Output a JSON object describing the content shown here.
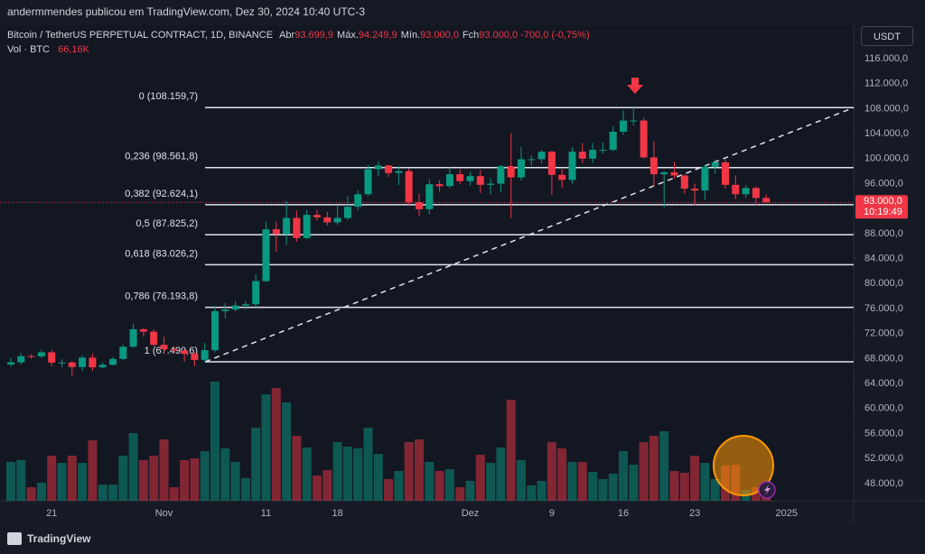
{
  "chart_data": {
    "type": "candlestick",
    "publisher": "andermmendes publicou em TradingView.com, Dez 30, 2024 10:40 UTC-3",
    "currency_button": "USDT",
    "brand": "TradingView",
    "categories": [
      null,
      null,
      null,
      null,
      "21",
      null,
      null,
      null,
      null,
      null,
      null,
      null,
      null,
      null,
      null,
      "Nov",
      null,
      null,
      null,
      null,
      null,
      null,
      null,
      null,
      null,
      "11",
      null,
      null,
      null,
      null,
      null,
      null,
      "18",
      null,
      null,
      null,
      null,
      null,
      null,
      null,
      null,
      null,
      null,
      null,
      null,
      "Dez",
      null,
      null,
      null,
      null,
      null,
      null,
      null,
      "9",
      null,
      null,
      null,
      null,
      null,
      null,
      "16",
      null,
      null,
      null,
      null,
      null,
      null,
      "23",
      null,
      null,
      null,
      null,
      null,
      null,
      null,
      null,
      "2025"
    ],
    "legend_items": [
      {
        "label": "Abr",
        "text": "93.699,9"
      },
      {
        "label": "Máx.",
        "text": "94.249,9"
      },
      {
        "label": "Mín.",
        "text": "93.000,0"
      },
      {
        "label": "Fch",
        "text": "93.000,0"
      }
    ],
    "change_text": "-700,0 (-0,75%)",
    "volume_text": "66,16K",
    "up_color": "#089981",
    "down_color": "#f23645",
    "series": [
      {
        "name": "Bitcoin / TetherUS PERPETUAL CONTRACT, 1D, BINANCE",
        "open": [
          67050,
          67400,
          68400,
          68360,
          69000,
          67370,
          67380,
          66650,
          68150,
          66600,
          67000,
          67950,
          69900,
          72700,
          72300,
          70200,
          69500,
          69300,
          68750,
          67800,
          69350,
          75600,
          75850,
          76500,
          76700,
          80400,
          88700,
          87900,
          90500,
          87300,
          91000,
          90600,
          89800,
          90500,
          92300,
          94300,
          98300,
          98900,
          97700,
          98000,
          93000,
          91900,
          95900,
          95600,
          97500,
          96400,
          97200,
          95800,
          96000,
          98800,
          97000,
          99900,
          99900,
          101100,
          97400,
          96600,
          101100,
          100000,
          101400,
          101400,
          104300,
          106100,
          106100,
          100200,
          97500,
          97800,
          97300,
          95200,
          94900,
          98700,
          99400,
          95800,
          94300,
          95300,
          93699.9,
          null,
          null
        ],
        "high": [
          68100,
          68900,
          68700,
          69400,
          69400,
          67900,
          67600,
          68500,
          68800,
          67400,
          68300,
          70200,
          73600,
          72900,
          72700,
          71500,
          69900,
          69500,
          69000,
          70500,
          76400,
          76900,
          77200,
          77200,
          81500,
          89900,
          89900,
          93200,
          91700,
          91800,
          91800,
          91500,
          92600,
          94000,
          94900,
          99000,
          99600,
          99000,
          98800,
          98400,
          94400,
          96700,
          96500,
          98600,
          98300,
          97900,
          98200,
          96900,
          99000,
          104088,
          101900,
          100500,
          101400,
          101300,
          98300,
          101800,
          102500,
          102500,
          102600,
          105200,
          107700,
          108159.7,
          106500,
          102800,
          98000,
          99500,
          97400,
          96000,
          99000,
          99900,
          99900,
          97300,
          95800,
          95600,
          94249.9,
          null,
          null
        ],
        "low": [
          66700,
          67100,
          68000,
          68100,
          66800,
          66600,
          65300,
          66000,
          66000,
          66500,
          66900,
          67700,
          69700,
          71500,
          70000,
          68800,
          68900,
          67500,
          66800,
          67500,
          69000,
          74400,
          75500,
          75800,
          76200,
          80200,
          85100,
          86200,
          86700,
          87100,
          90100,
          89300,
          89400,
          90200,
          91800,
          94000,
          97200,
          97100,
          95800,
          92600,
          90800,
          91100,
          94700,
          95300,
          95900,
          95700,
          94500,
          94300,
          94600,
          90500,
          96500,
          98900,
          99200,
          94200,
          95300,
          96000,
          99300,
          99300,
          100800,
          101200,
          103800,
          105300,
          100000,
          95500,
          92200,
          96800,
          94400,
          92500,
          93400,
          97600,
          95200,
          93500,
          93700,
          92500,
          93000,
          null,
          null
        ],
        "close": [
          67400,
          68400,
          68360,
          69000,
          67370,
          67380,
          66650,
          68150,
          66600,
          67000,
          67950,
          69900,
          72700,
          72300,
          70200,
          69500,
          69300,
          68750,
          67800,
          69350,
          75600,
          75850,
          76500,
          76700,
          80400,
          88700,
          87900,
          90500,
          87300,
          91000,
          90600,
          89800,
          90500,
          92300,
          94300,
          98300,
          98900,
          97700,
          98000,
          93000,
          91900,
          95900,
          95600,
          97500,
          96400,
          97200,
          95800,
          96000,
          98800,
          97000,
          99900,
          99900,
          101100,
          97400,
          96600,
          101100,
          100000,
          101400,
          101400,
          104300,
          106100,
          106100,
          100200,
          97500,
          97800,
          97300,
          95200,
          94900,
          98700,
          99400,
          95800,
          94300,
          95300,
          93700,
          93000,
          null,
          null
        ]
      },
      {
        "name": "Vol · BTC",
        "axis": "y2",
        "values": [
          159100,
          166500,
          55500,
          74000,
          185000,
          155400,
          185000,
          155400,
          247900,
          66600,
          66600,
          185000,
          277500,
          166500,
          185000,
          251600,
          55500,
          166500,
          173900,
          203500,
          488400,
          214600,
          159100,
          92500,
          299700,
          436600,
          462500,
          403300,
          266400,
          218300,
          103600,
          125800,
          240500,
          222000,
          214600,
          299700,
          192400,
          88800,
          122100,
          240500,
          251600,
          159100,
          122100,
          129500,
          55500,
          81400,
          188700,
          155400,
          218300,
          414400,
          166500,
          62900,
          81400,
          240500,
          214600,
          159100,
          159100,
          118400,
          88800,
          111000,
          203500,
          148000,
          240500,
          266400,
          284900,
          122100,
          114700,
          185000,
          155400,
          88800,
          144300,
          148000,
          44400,
          55500,
          66160,
          null,
          null
        ]
      }
    ],
    "ylim": [
      45250,
      121050
    ],
    "yticks": [
      {
        "value": 116000,
        "label": "116.000,0"
      },
      {
        "value": 112000,
        "label": "112.000,0"
      },
      {
        "value": 108000,
        "label": "108.000,0"
      },
      {
        "value": 104000,
        "label": "104.000,0"
      },
      {
        "value": 100000,
        "label": "100.000,0"
      },
      {
        "value": 96000,
        "label": "96.000,0"
      },
      {
        "value": 88000,
        "label": "88.000,0"
      },
      {
        "value": 84000,
        "label": "84.000,0"
      },
      {
        "value": 80000,
        "label": "80.000,0"
      },
      {
        "value": 76000,
        "label": "76.000,0"
      },
      {
        "value": 72000,
        "label": "72.000,0"
      },
      {
        "value": 68000,
        "label": "68.000,0"
      },
      {
        "value": 64000,
        "label": "64.000,0"
      },
      {
        "value": 60000,
        "label": "60.000,0"
      },
      {
        "value": 56000,
        "label": "56.000,0"
      },
      {
        "value": 52000,
        "label": "52.000,0"
      },
      {
        "value": 48000,
        "label": "48.000,0"
      }
    ],
    "y2lim": [
      0,
      1942500
    ],
    "grid": false,
    "price_tag": {
      "value": 93000,
      "label": "93.000,0",
      "countdown": "10:19:49"
    },
    "fib_levels": [
      {
        "value": 108159.7,
        "label": "0 (108.159,7)"
      },
      {
        "value": 98561.8,
        "label": "0,236 (98.561,8)"
      },
      {
        "value": 92624.1,
        "label": "0,382 (92.624,1)"
      },
      {
        "value": 87825.2,
        "label": "0,5 (87.825,2)"
      },
      {
        "value": 83026.2,
        "label": "0,618 (83.026,2)"
      },
      {
        "value": 76193.8,
        "label": "0,786 (76.193,8)"
      },
      {
        "value": 67490.6,
        "label": "1 (67.490,6)"
      }
    ]
  }
}
